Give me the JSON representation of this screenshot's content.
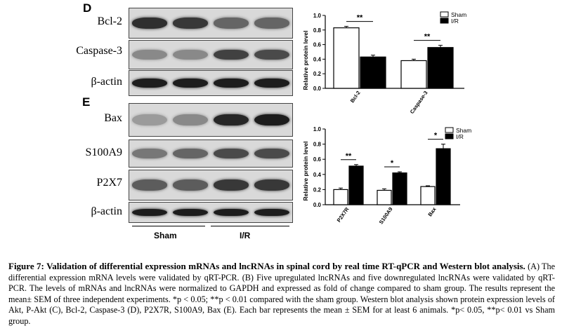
{
  "panel_d": {
    "letter": "D",
    "blots": [
      {
        "label": "Bcl-2",
        "intensities": [
          0.85,
          0.8,
          0.55,
          0.55
        ]
      },
      {
        "label": "Caspase-3",
        "intensities": [
          0.35,
          0.35,
          0.75,
          0.7
        ]
      },
      {
        "label": "β-actin",
        "intensities": [
          0.95,
          0.95,
          0.95,
          0.95
        ]
      }
    ]
  },
  "panel_e": {
    "letter": "E",
    "blots": [
      {
        "label": "Bax",
        "intensities": [
          0.25,
          0.35,
          0.9,
          0.95
        ]
      },
      {
        "label": "S100A9",
        "intensities": [
          0.45,
          0.55,
          0.7,
          0.7
        ]
      },
      {
        "label": "P2X7",
        "intensities": [
          0.6,
          0.6,
          0.8,
          0.8
        ]
      },
      {
        "label": "β-actin",
        "intensities": [
          0.95,
          0.95,
          0.95,
          0.95
        ]
      }
    ],
    "groups": [
      "Sham",
      "I/R"
    ]
  },
  "chart_data": [
    {
      "type": "bar",
      "ylabel": "Relative protein level",
      "ylim": [
        0,
        1.0
      ],
      "yticks": [
        "0.0",
        "0.2",
        "0.4",
        "0.6",
        "0.8",
        "1.0"
      ],
      "categories": [
        "Bcl-2",
        "Caspase-3"
      ],
      "series": [
        {
          "name": "Sham",
          "values": [
            0.83,
            0.38
          ],
          "errors": [
            0.02,
            0.02
          ],
          "color": "#ffffff"
        },
        {
          "name": "I/R",
          "values": [
            0.43,
            0.56
          ],
          "errors": [
            0.025,
            0.03
          ],
          "color": "#000000"
        }
      ],
      "significance": [
        "**",
        "**"
      ],
      "legend": "top-right",
      "grid": false
    },
    {
      "type": "bar",
      "ylabel": "Relative protein level",
      "ylim": [
        0,
        1.0
      ],
      "yticks": [
        "0.0",
        "0.2",
        "0.4",
        "0.6",
        "0.8",
        "1.0"
      ],
      "categories": [
        "P2X7R",
        "S100A9",
        "Bax"
      ],
      "series": [
        {
          "name": "Sham",
          "values": [
            0.2,
            0.19,
            0.24
          ],
          "errors": [
            0.02,
            0.02,
            0.01
          ],
          "color": "#ffffff"
        },
        {
          "name": "I/R",
          "values": [
            0.51,
            0.42,
            0.74
          ],
          "errors": [
            0.02,
            0.015,
            0.06
          ],
          "color": "#000000"
        }
      ],
      "significance": [
        "**",
        "*",
        "*"
      ],
      "legend": "top-right",
      "grid": false
    }
  ],
  "caption": {
    "title": "Figure 7: Validation of differential expression mRNAs and lncRNAs in spinal cord by real time RT-qPCR and Western blot analysis.",
    "body": "(A) The differential expression mRNA levels were validated by qRT-PCR. (B) Five upregulated lncRNAs and five downregulated lncRNAs were validated by qRT-PCR. The levels of mRNAs and lncRNAs were normalized to GAPDH and expressed as fold of change compared to sham group. The results represent the mean± SEM of three independent experiments. *p < 0.05; **p < 0.01 compared with the sham group. Western blot analysis shown protein expression levels of Akt, P-Akt (C), Bcl-2, Caspase-3 (D), P2X7R, S100A9, Bax (E). Each bar represents the mean ± SEM for at least 6 animals. *p< 0.05, **p< 0.01 vs Sham group."
  }
}
